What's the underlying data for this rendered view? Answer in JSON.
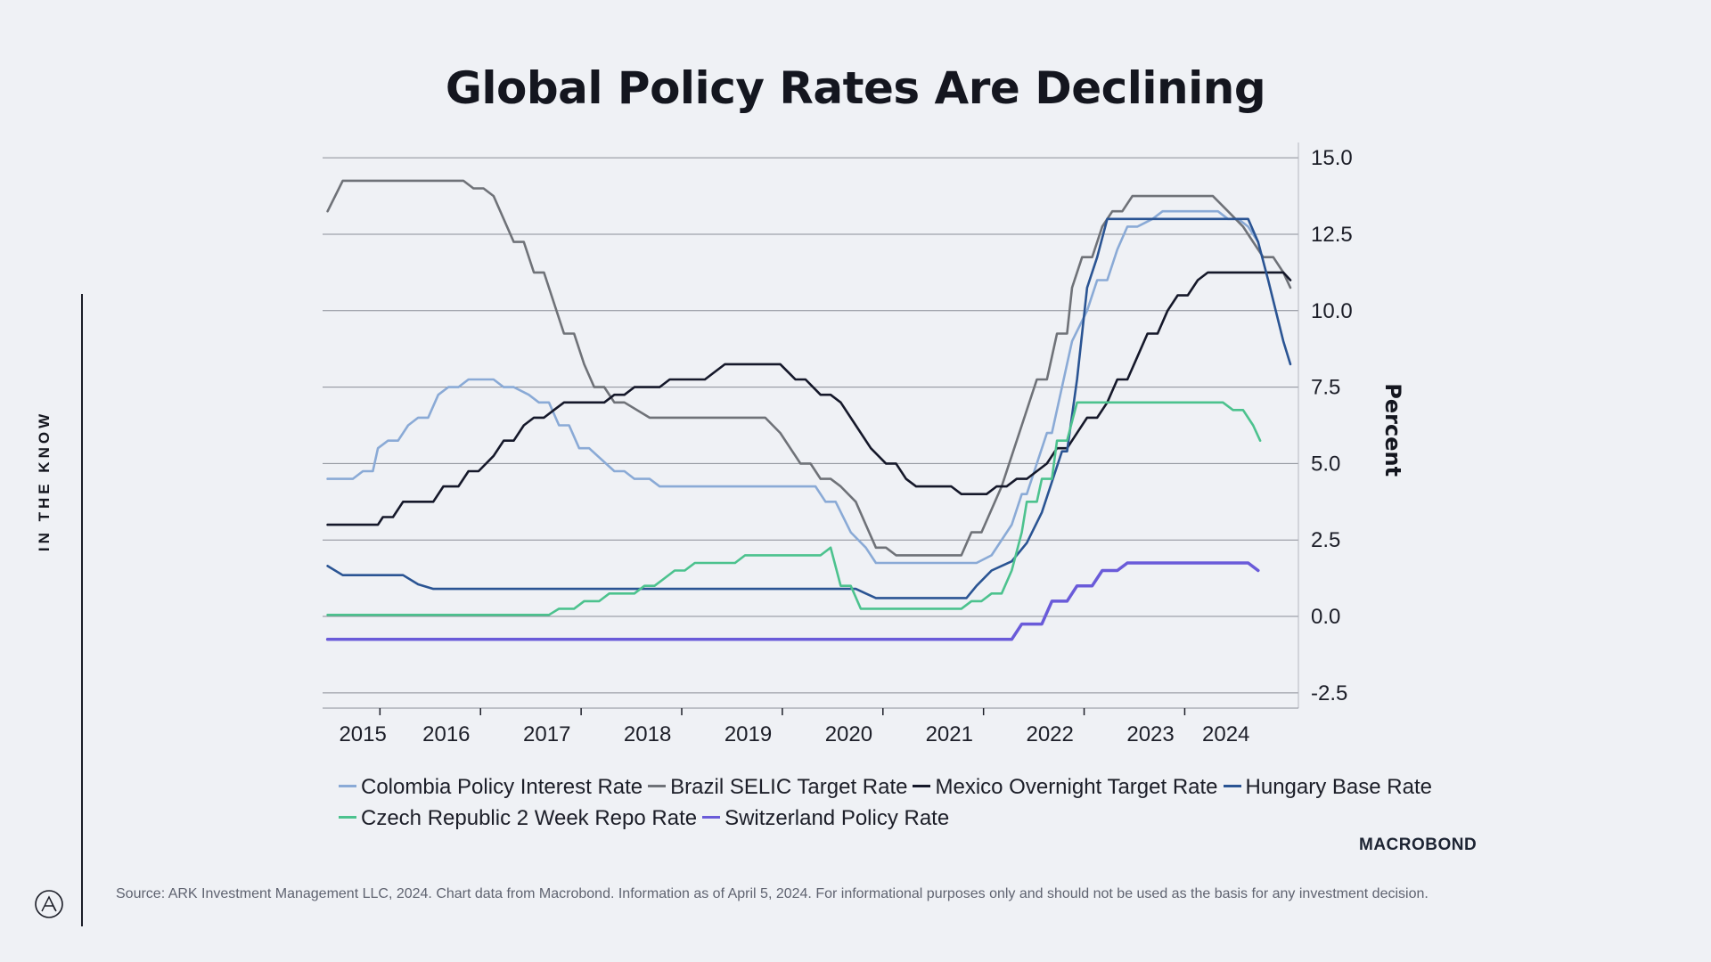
{
  "page": {
    "title": "Global Policy Rates Are Declining",
    "side_label": "IN THE KNOW",
    "brand": "MACROBOND",
    "source": "Source: ARK Investment Management LLC, 2024. Chart data from Macrobond. Information as of April 5, 2024. For informational purposes only and should not be used as the basis for any investment decision."
  },
  "chart_data": {
    "type": "line",
    "title": "Global Policy Rates Are Declining",
    "xlabel": "",
    "ylabel": "Percent",
    "xlim": [
      2014.6,
      2024.3
    ],
    "ylim": [
      -3.0,
      15.5
    ],
    "y_ticks": [
      15.0,
      12.5,
      10.0,
      7.5,
      5.0,
      2.5,
      0.0,
      -2.5
    ],
    "y_tick_labels": [
      "15.0",
      "12.5",
      "10.0",
      "7.5",
      "5.0",
      "2.5",
      "0.0",
      "-2.5"
    ],
    "x_tick_labels": [
      {
        "label": "2015",
        "x": 2015.0
      },
      {
        "label": "2016",
        "x": 2015.83
      },
      {
        "label": "2017",
        "x": 2016.83
      },
      {
        "label": "2018",
        "x": 2017.83
      },
      {
        "label": "2019",
        "x": 2018.83
      },
      {
        "label": "2020",
        "x": 2019.83
      },
      {
        "label": "2021",
        "x": 2020.83
      },
      {
        "label": "2022",
        "x": 2021.83
      },
      {
        "label": "2023",
        "x": 2022.83
      },
      {
        "label": "2024",
        "x": 2023.58
      }
    ],
    "grid": true,
    "legend_position": "bottom",
    "series": [
      {
        "name": "Colombia Policy Interest Rate",
        "color": "#8aaad6",
        "points": [
          [
            2014.65,
            4.5
          ],
          [
            2014.9,
            4.5
          ],
          [
            2015.0,
            4.75
          ],
          [
            2015.1,
            4.75
          ],
          [
            2015.15,
            5.5
          ],
          [
            2015.25,
            5.75
          ],
          [
            2015.35,
            5.75
          ],
          [
            2015.45,
            6.25
          ],
          [
            2015.55,
            6.5
          ],
          [
            2015.65,
            6.5
          ],
          [
            2015.75,
            7.25
          ],
          [
            2015.85,
            7.5
          ],
          [
            2015.95,
            7.5
          ],
          [
            2016.05,
            7.75
          ],
          [
            2016.3,
            7.75
          ],
          [
            2016.4,
            7.5
          ],
          [
            2016.5,
            7.5
          ],
          [
            2016.65,
            7.25
          ],
          [
            2016.75,
            7.0
          ],
          [
            2016.85,
            7.0
          ],
          [
            2016.95,
            6.25
          ],
          [
            2017.05,
            6.25
          ],
          [
            2017.15,
            5.5
          ],
          [
            2017.25,
            5.5
          ],
          [
            2017.5,
            4.75
          ],
          [
            2017.6,
            4.75
          ],
          [
            2017.7,
            4.5
          ],
          [
            2017.85,
            4.5
          ],
          [
            2017.95,
            4.25
          ],
          [
            2019.5,
            4.25
          ],
          [
            2019.6,
            3.75
          ],
          [
            2019.7,
            3.75
          ],
          [
            2019.85,
            2.75
          ],
          [
            2020.0,
            2.25
          ],
          [
            2020.1,
            1.75
          ],
          [
            2021.1,
            1.75
          ],
          [
            2021.25,
            2.0
          ],
          [
            2021.45,
            3.0
          ],
          [
            2021.55,
            4.0
          ],
          [
            2021.6,
            4.0
          ],
          [
            2021.7,
            5.0
          ],
          [
            2021.8,
            6.0
          ],
          [
            2021.85,
            6.0
          ],
          [
            2021.95,
            7.5
          ],
          [
            2022.05,
            9.0
          ],
          [
            2022.2,
            10.0
          ],
          [
            2022.3,
            11.0
          ],
          [
            2022.4,
            11.0
          ],
          [
            2022.5,
            12.0
          ],
          [
            2022.6,
            12.75
          ],
          [
            2022.7,
            12.75
          ],
          [
            2022.85,
            13.0
          ],
          [
            2022.95,
            13.25
          ],
          [
            2023.5,
            13.25
          ],
          [
            2023.6,
            13.0
          ],
          [
            2023.7,
            13.0
          ],
          [
            2023.8,
            12.75
          ],
          [
            2023.9,
            12.25
          ]
        ]
      },
      {
        "name": "Brazil SELIC Target Rate",
        "color": "#6f7278",
        "points": [
          [
            2014.65,
            13.25
          ],
          [
            2014.8,
            14.25
          ],
          [
            2016.0,
            14.25
          ],
          [
            2016.1,
            14.0
          ],
          [
            2016.2,
            14.0
          ],
          [
            2016.3,
            13.75
          ],
          [
            2016.5,
            12.25
          ],
          [
            2016.6,
            12.25
          ],
          [
            2016.7,
            11.25
          ],
          [
            2016.8,
            11.25
          ],
          [
            2017.0,
            9.25
          ],
          [
            2017.1,
            9.25
          ],
          [
            2017.2,
            8.25
          ],
          [
            2017.3,
            7.5
          ],
          [
            2017.4,
            7.5
          ],
          [
            2017.5,
            7.0
          ],
          [
            2017.6,
            7.0
          ],
          [
            2017.85,
            6.5
          ],
          [
            2019.0,
            6.5
          ],
          [
            2019.15,
            6.0
          ],
          [
            2019.35,
            5.0
          ],
          [
            2019.45,
            5.0
          ],
          [
            2019.55,
            4.5
          ],
          [
            2019.65,
            4.5
          ],
          [
            2019.75,
            4.25
          ],
          [
            2019.9,
            3.75
          ],
          [
            2020.0,
            3.0
          ],
          [
            2020.1,
            2.25
          ],
          [
            2020.2,
            2.25
          ],
          [
            2020.3,
            2.0
          ],
          [
            2020.95,
            2.0
          ],
          [
            2021.05,
            2.75
          ],
          [
            2021.15,
            2.75
          ],
          [
            2021.25,
            3.5
          ],
          [
            2021.35,
            4.25
          ],
          [
            2021.45,
            5.25
          ],
          [
            2021.55,
            6.25
          ],
          [
            2021.7,
            7.75
          ],
          [
            2021.8,
            7.75
          ],
          [
            2021.9,
            9.25
          ],
          [
            2022.0,
            9.25
          ],
          [
            2022.05,
            10.75
          ],
          [
            2022.15,
            11.75
          ],
          [
            2022.25,
            11.75
          ],
          [
            2022.35,
            12.75
          ],
          [
            2022.45,
            13.25
          ],
          [
            2022.55,
            13.25
          ],
          [
            2022.65,
            13.75
          ],
          [
            2023.45,
            13.75
          ],
          [
            2023.6,
            13.25
          ],
          [
            2023.75,
            12.75
          ],
          [
            2023.85,
            12.25
          ],
          [
            2023.95,
            11.75
          ],
          [
            2024.05,
            11.75
          ],
          [
            2024.15,
            11.25
          ],
          [
            2024.22,
            10.75
          ]
        ]
      },
      {
        "name": "Mexico Overnight Target Rate",
        "color": "#15182a",
        "points": [
          [
            2014.65,
            3.0
          ],
          [
            2015.15,
            3.0
          ],
          [
            2015.2,
            3.25
          ],
          [
            2015.3,
            3.25
          ],
          [
            2015.4,
            3.75
          ],
          [
            2015.7,
            3.75
          ],
          [
            2015.8,
            4.25
          ],
          [
            2015.95,
            4.25
          ],
          [
            2016.05,
            4.75
          ],
          [
            2016.15,
            4.75
          ],
          [
            2016.3,
            5.25
          ],
          [
            2016.4,
            5.75
          ],
          [
            2016.5,
            5.75
          ],
          [
            2016.6,
            6.25
          ],
          [
            2016.7,
            6.5
          ],
          [
            2016.8,
            6.5
          ],
          [
            2016.9,
            6.75
          ],
          [
            2017.0,
            7.0
          ],
          [
            2017.4,
            7.0
          ],
          [
            2017.5,
            7.25
          ],
          [
            2017.6,
            7.25
          ],
          [
            2017.7,
            7.5
          ],
          [
            2017.95,
            7.5
          ],
          [
            2018.05,
            7.75
          ],
          [
            2018.4,
            7.75
          ],
          [
            2018.5,
            8.0
          ],
          [
            2018.6,
            8.25
          ],
          [
            2019.15,
            8.25
          ],
          [
            2019.3,
            7.75
          ],
          [
            2019.4,
            7.75
          ],
          [
            2019.55,
            7.25
          ],
          [
            2019.65,
            7.25
          ],
          [
            2019.75,
            7.0
          ],
          [
            2019.9,
            6.25
          ],
          [
            2020.05,
            5.5
          ],
          [
            2020.2,
            5.0
          ],
          [
            2020.3,
            5.0
          ],
          [
            2020.4,
            4.5
          ],
          [
            2020.5,
            4.25
          ],
          [
            2020.85,
            4.25
          ],
          [
            2020.95,
            4.0
          ],
          [
            2021.2,
            4.0
          ],
          [
            2021.3,
            4.25
          ],
          [
            2021.4,
            4.25
          ],
          [
            2021.5,
            4.5
          ],
          [
            2021.6,
            4.5
          ],
          [
            2021.7,
            4.75
          ],
          [
            2021.8,
            5.0
          ],
          [
            2021.9,
            5.5
          ],
          [
            2022.0,
            5.5
          ],
          [
            2022.1,
            6.0
          ],
          [
            2022.2,
            6.5
          ],
          [
            2022.3,
            6.5
          ],
          [
            2022.4,
            7.0
          ],
          [
            2022.5,
            7.75
          ],
          [
            2022.6,
            7.75
          ],
          [
            2022.7,
            8.5
          ],
          [
            2022.8,
            9.25
          ],
          [
            2022.9,
            9.25
          ],
          [
            2023.0,
            10.0
          ],
          [
            2023.1,
            10.5
          ],
          [
            2023.2,
            10.5
          ],
          [
            2023.3,
            11.0
          ],
          [
            2023.4,
            11.25
          ],
          [
            2024.15,
            11.25
          ],
          [
            2024.22,
            11.0
          ]
        ]
      },
      {
        "name": "Hungary Base Rate",
        "color": "#2a5493",
        "points": [
          [
            2014.65,
            1.65
          ],
          [
            2014.8,
            1.35
          ],
          [
            2015.4,
            1.35
          ],
          [
            2015.55,
            1.05
          ],
          [
            2015.7,
            0.9
          ],
          [
            2019.9,
            0.9
          ],
          [
            2020.0,
            0.75
          ],
          [
            2020.1,
            0.6
          ],
          [
            2021.0,
            0.6
          ],
          [
            2021.1,
            1.0
          ],
          [
            2021.25,
            1.5
          ],
          [
            2021.45,
            1.8
          ],
          [
            2021.6,
            2.4
          ],
          [
            2021.75,
            3.4
          ],
          [
            2021.85,
            4.4
          ],
          [
            2021.95,
            5.4
          ],
          [
            2022.0,
            5.4
          ],
          [
            2022.1,
            7.75
          ],
          [
            2022.2,
            10.75
          ],
          [
            2022.3,
            11.75
          ],
          [
            2022.4,
            13.0
          ],
          [
            2023.8,
            13.0
          ],
          [
            2023.9,
            12.25
          ],
          [
            2024.0,
            11.0
          ],
          [
            2024.15,
            9.0
          ],
          [
            2024.22,
            8.25
          ]
        ]
      },
      {
        "name": "Czech Republic 2 Week Repo Rate",
        "color": "#4cc28e",
        "points": [
          [
            2014.65,
            0.05
          ],
          [
            2016.85,
            0.05
          ],
          [
            2016.95,
            0.25
          ],
          [
            2017.1,
            0.25
          ],
          [
            2017.2,
            0.5
          ],
          [
            2017.35,
            0.5
          ],
          [
            2017.45,
            0.75
          ],
          [
            2017.7,
            0.75
          ],
          [
            2017.8,
            1.0
          ],
          [
            2017.9,
            1.0
          ],
          [
            2018.0,
            1.25
          ],
          [
            2018.1,
            1.5
          ],
          [
            2018.2,
            1.5
          ],
          [
            2018.3,
            1.75
          ],
          [
            2018.7,
            1.75
          ],
          [
            2018.8,
            2.0
          ],
          [
            2019.55,
            2.0
          ],
          [
            2019.65,
            2.25
          ],
          [
            2019.75,
            1.0
          ],
          [
            2019.85,
            1.0
          ],
          [
            2019.95,
            0.25
          ],
          [
            2020.95,
            0.25
          ],
          [
            2021.05,
            0.5
          ],
          [
            2021.15,
            0.5
          ],
          [
            2021.25,
            0.75
          ],
          [
            2021.35,
            0.75
          ],
          [
            2021.45,
            1.5
          ],
          [
            2021.55,
            2.75
          ],
          [
            2021.6,
            3.75
          ],
          [
            2021.7,
            3.75
          ],
          [
            2021.75,
            4.5
          ],
          [
            2021.85,
            4.5
          ],
          [
            2021.9,
            5.75
          ],
          [
            2022.0,
            5.75
          ],
          [
            2022.1,
            7.0
          ],
          [
            2023.55,
            7.0
          ],
          [
            2023.65,
            6.75
          ],
          [
            2023.75,
            6.75
          ],
          [
            2023.85,
            6.25
          ],
          [
            2023.92,
            5.75
          ]
        ]
      },
      {
        "name": "Switzerland Policy Rate",
        "color": "#6a5bd9",
        "points": [
          [
            2014.65,
            -0.75
          ],
          [
            2021.45,
            -0.75
          ],
          [
            2021.55,
            -0.25
          ],
          [
            2021.75,
            -0.25
          ],
          [
            2021.85,
            0.5
          ],
          [
            2022.0,
            0.5
          ],
          [
            2022.1,
            1.0
          ],
          [
            2022.25,
            1.0
          ],
          [
            2022.35,
            1.5
          ],
          [
            2022.5,
            1.5
          ],
          [
            2022.6,
            1.75
          ],
          [
            2023.8,
            1.75
          ],
          [
            2023.9,
            1.5
          ]
        ]
      }
    ]
  },
  "legend": {
    "rows": [
      [
        {
          "label": "Colombia Policy Interest Rate",
          "color": "#8aaad6"
        },
        {
          "label": "Brazil SELIC Target Rate",
          "color": "#6f7278"
        },
        {
          "label": "Mexico Overnight Target Rate",
          "color": "#15182a"
        },
        {
          "label": "Hungary Base Rate",
          "color": "#2a5493"
        }
      ],
      [
        {
          "label": "Czech Republic 2 Week Repo Rate",
          "color": "#4cc28e"
        },
        {
          "label": "Switzerland Policy Rate",
          "color": "#6a5bd9"
        }
      ]
    ]
  }
}
